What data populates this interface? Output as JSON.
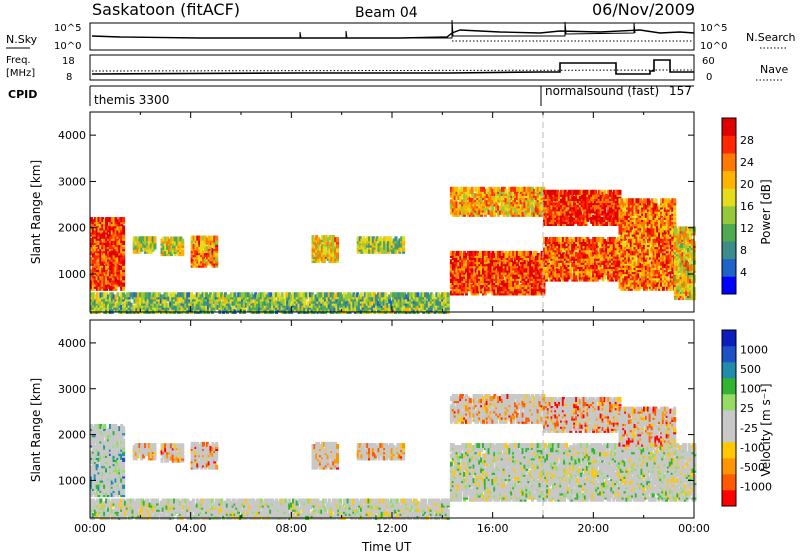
{
  "header": {
    "station": "Saskatoon (fitACF)",
    "beam": "Beam 04",
    "date": "06/Nov/2009"
  },
  "top_panels": {
    "nsky_label": "N.Sky",
    "nsky_ticks": [
      "10^5",
      "10^0"
    ],
    "nsearch_label": "N.Search",
    "freq_label_line1": "Freq.",
    "freq_label_line2": "[MHz]",
    "freq_ticks": [
      "18",
      "8"
    ],
    "nave_label": "Nave",
    "nave_ticks": [
      "60",
      "0"
    ],
    "cpid_label": "CPID",
    "cpid_segments": [
      {
        "label": "themis 3300",
        "start_hour": 0
      },
      {
        "label": "normalsound (fast)",
        "code": "157",
        "start_hour": 18
      }
    ]
  },
  "chart_data": [
    {
      "type": "heatmap",
      "quantity": "Power",
      "xlabel": "",
      "ylabel": "Slant Range [km]",
      "xlim_hours": [
        0,
        24
      ],
      "ylim_km": [
        180,
        4500
      ],
      "yticks": [
        1000,
        2000,
        3000,
        4000
      ],
      "colorbar": {
        "label": "Power [dB]",
        "ticks": [
          "28",
          "24",
          "20",
          "16",
          "12",
          "8",
          "4"
        ],
        "colors": [
          "#0000ff",
          "#1e64c8",
          "#3c8c8c",
          "#50aa50",
          "#96c83c",
          "#e6dc1e",
          "#ffb400",
          "#ff7800",
          "#ff2800",
          "#e10000"
        ]
      },
      "echo_regions": [
        {
          "t0": 0.0,
          "t1": 1.3,
          "r0": 700,
          "r1": 2200,
          "level": 0.85
        },
        {
          "t0": 1.7,
          "t1": 2.6,
          "r0": 1500,
          "r1": 1800,
          "level": 0.5
        },
        {
          "t0": 2.8,
          "t1": 3.7,
          "r0": 1450,
          "r1": 1800,
          "level": 0.55
        },
        {
          "t0": 4.0,
          "t1": 5.0,
          "r0": 1200,
          "r1": 1800,
          "level": 0.7
        },
        {
          "t0": 8.8,
          "t1": 9.8,
          "r0": 1300,
          "r1": 1800,
          "level": 0.6
        },
        {
          "t0": 10.6,
          "t1": 12.4,
          "r0": 1500,
          "r1": 1800,
          "level": 0.45
        },
        {
          "t0": 0.0,
          "t1": 14.2,
          "r0": 200,
          "r1": 600,
          "level": 0.4
        },
        {
          "t0": 14.3,
          "t1": 18.0,
          "r0": 600,
          "r1": 1500,
          "level": 0.85
        },
        {
          "t0": 14.3,
          "t1": 18.0,
          "r0": 2300,
          "r1": 2850,
          "level": 0.65
        },
        {
          "t0": 18.0,
          "t1": 21.0,
          "r0": 900,
          "r1": 1800,
          "level": 0.8
        },
        {
          "t0": 18.0,
          "t1": 21.0,
          "r0": 2100,
          "r1": 2800,
          "level": 0.9
        },
        {
          "t0": 21.0,
          "t1": 23.2,
          "r0": 700,
          "r1": 2600,
          "level": 0.75
        },
        {
          "t0": 23.2,
          "t1": 24.0,
          "r0": 500,
          "r1": 2000,
          "level": 0.6
        }
      ]
    },
    {
      "type": "heatmap",
      "quantity": "Velocity",
      "xlabel": "Time UT",
      "ylabel": "Slant Range [km]",
      "xlim_hours": [
        0,
        24
      ],
      "ylim_km": [
        180,
        4500
      ],
      "xticks": [
        "00:00",
        "04:00",
        "08:00",
        "12:00",
        "16:00",
        "20:00",
        "00:00"
      ],
      "yticks": [
        1000,
        2000,
        3000,
        4000
      ],
      "colorbar": {
        "label": "Velocity [m s⁻¹]",
        "ticks": [
          "1000",
          "500",
          "100",
          "25",
          "-25",
          "-100",
          "-500",
          "-1000"
        ],
        "colors": [
          "#ff0000",
          "#ff5a00",
          "#ff9600",
          "#ffc800",
          "#c8c8c8",
          "#c8c8c8",
          "#96dc64",
          "#32b432",
          "#1e8caa",
          "#1e50c8",
          "#0a1ebe"
        ]
      },
      "echo_regions": [
        {
          "t0": 0.0,
          "t1": 1.3,
          "r0": 700,
          "r1": 2200,
          "level": 0.6
        },
        {
          "t0": 1.7,
          "t1": 2.6,
          "r0": 1500,
          "r1": 1800,
          "level": 0.3
        },
        {
          "t0": 2.8,
          "t1": 3.7,
          "r0": 1450,
          "r1": 1800,
          "level": 0.25
        },
        {
          "t0": 4.0,
          "t1": 5.0,
          "r0": 1300,
          "r1": 1800,
          "level": 0.3
        },
        {
          "t0": 8.8,
          "t1": 9.8,
          "r0": 1300,
          "r1": 1800,
          "level": 0.3
        },
        {
          "t0": 10.6,
          "t1": 12.4,
          "r0": 1500,
          "r1": 1800,
          "level": 0.3
        },
        {
          "t0": 0.0,
          "t1": 14.2,
          "r0": 200,
          "r1": 600,
          "level": 0.5
        },
        {
          "t0": 14.3,
          "t1": 24.0,
          "r0": 600,
          "r1": 1800,
          "level": 0.5
        },
        {
          "t0": 14.3,
          "t1": 18.0,
          "r0": 2300,
          "r1": 2850,
          "level": 0.3
        },
        {
          "t0": 18.0,
          "t1": 21.0,
          "r0": 2100,
          "r1": 2800,
          "level": 0.2
        },
        {
          "t0": 21.0,
          "t1": 23.2,
          "r0": 1800,
          "r1": 2600,
          "level": 0.25
        }
      ]
    }
  ]
}
